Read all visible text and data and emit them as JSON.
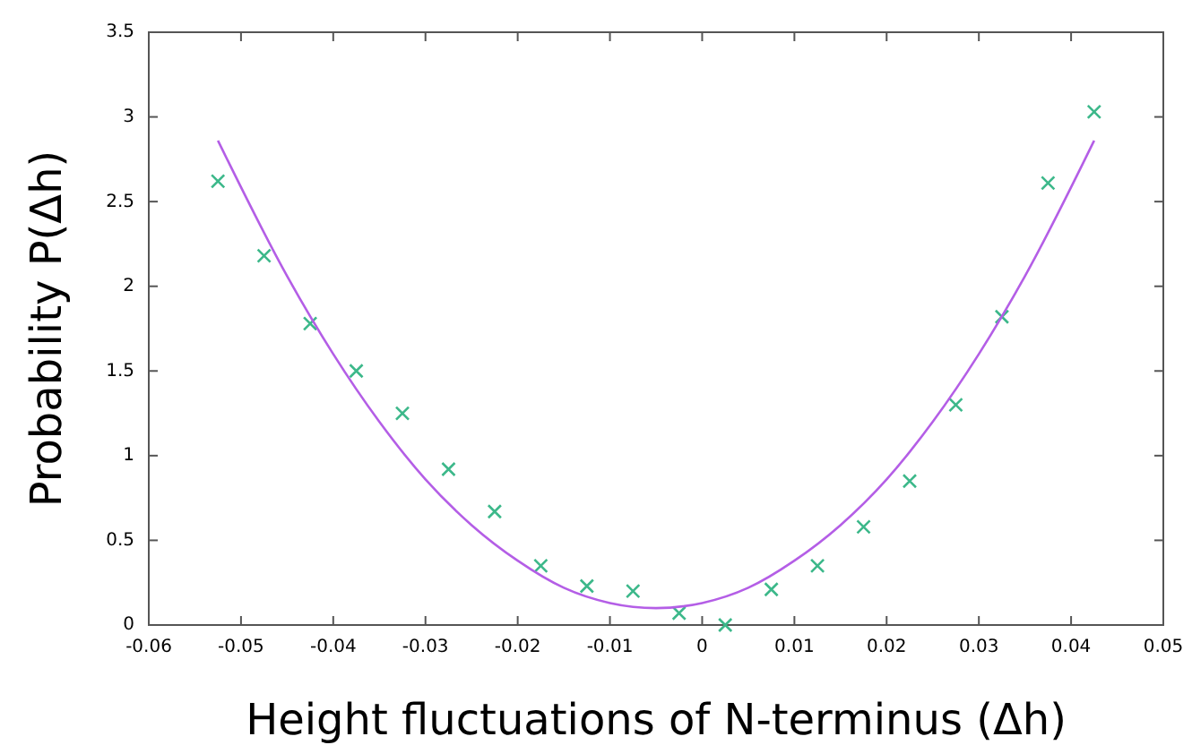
{
  "chart_data": {
    "type": "scatter",
    "xlabel": "Height fluctuations of N-terminus (Δh)",
    "ylabel": "Probability P(Δh)",
    "xlim": [
      -0.06,
      0.05
    ],
    "xticks": [
      -0.06,
      -0.05,
      -0.04,
      -0.03,
      -0.02,
      -0.01,
      0,
      0.01,
      0.02,
      0.03,
      0.04,
      0.05
    ],
    "ylim": [
      0,
      3.5
    ],
    "yticks": [
      0,
      0.5,
      1,
      1.5,
      2,
      2.5,
      3,
      3.5
    ],
    "grid": false,
    "series": [
      {
        "marker": "cross",
        "color": "#3cb88a",
        "x": [
          -0.0525,
          -0.0475,
          -0.0425,
          -0.0375,
          -0.0325,
          -0.0275,
          -0.0225,
          -0.0175,
          -0.0125,
          -0.0075,
          -0.0025,
          0.0025,
          0.0075,
          0.0125,
          0.0175,
          0.0225,
          0.0275,
          0.0325,
          0.0375,
          0.0425
        ],
        "values": [
          2.62,
          2.18,
          1.78,
          1.5,
          1.25,
          0.92,
          0.67,
          0.35,
          0.23,
          0.2,
          0.07,
          0,
          0.21,
          0.35,
          0.58,
          0.85,
          1.3,
          1.82,
          2.61,
          3.03
        ]
      },
      {
        "type": "line",
        "marker": "none",
        "line_style": "solid",
        "color": "#b45ee6",
        "x": [
          -0.0525,
          -0.045,
          -0.04,
          -0.035,
          -0.03,
          -0.025,
          -0.02,
          -0.015,
          -0.01,
          -0.005,
          0,
          0.005,
          0.01,
          0.015,
          0.02,
          0.025,
          0.03,
          0.035,
          0.0425
        ],
        "values": [
          2.86,
          2.06,
          1.6,
          1.2,
          0.86,
          0.59,
          0.38,
          0.22,
          0.13,
          0.1,
          0.13,
          0.22,
          0.38,
          0.59,
          0.86,
          1.2,
          1.6,
          2.06,
          2.86
        ]
      }
    ]
  }
}
